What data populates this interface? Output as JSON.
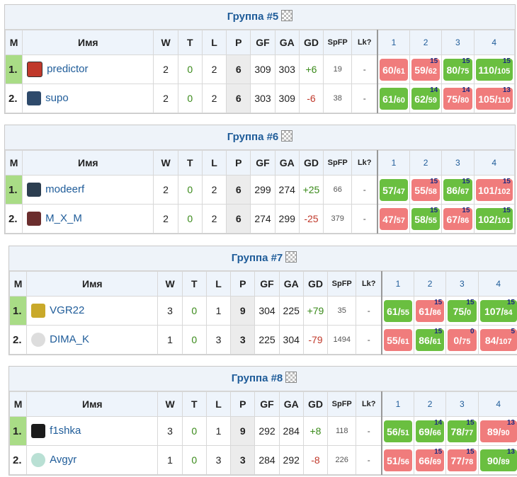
{
  "headers": {
    "m": "М",
    "name": "Имя",
    "w": "W",
    "t": "T",
    "l": "L",
    "p": "P",
    "gf": "GF",
    "ga": "GA",
    "gd": "GD",
    "spfp": "SpFP",
    "lk": "Lk?",
    "r1": "1",
    "r2": "2",
    "r3": "3",
    "r4": "4"
  },
  "groups": [
    {
      "title": "Группа #5",
      "rows": [
        {
          "m": "1.",
          "name": "predictor",
          "w": "2",
          "t": "0",
          "l": "2",
          "p": "6",
          "gf": "309",
          "ga": "303",
          "gd": "+6",
          "spfp": "19",
          "lk": "-",
          "res": [
            {
              "a": "60",
              "b": "61",
              "o": "",
              "win": false
            },
            {
              "a": "59",
              "b": "62",
              "o": "15",
              "win": false
            },
            {
              "a": "80",
              "b": "75",
              "o": "15",
              "win": true
            },
            {
              "a": "110",
              "b": "105",
              "o": "15",
              "win": true
            }
          ]
        },
        {
          "m": "2.",
          "name": "supo",
          "w": "2",
          "t": "0",
          "l": "2",
          "p": "6",
          "gf": "303",
          "ga": "309",
          "gd": "-6",
          "spfp": "38",
          "lk": "-",
          "res": [
            {
              "a": "61",
              "b": "60",
              "o": "",
              "win": true
            },
            {
              "a": "62",
              "b": "59",
              "o": "14",
              "win": true
            },
            {
              "a": "75",
              "b": "80",
              "o": "14",
              "win": false
            },
            {
              "a": "105",
              "b": "110",
              "o": "13",
              "win": false
            }
          ]
        }
      ]
    },
    {
      "title": "Группа #6",
      "rows": [
        {
          "m": "1.",
          "name": "modeerf",
          "w": "2",
          "t": "0",
          "l": "2",
          "p": "6",
          "gf": "299",
          "ga": "274",
          "gd": "+25",
          "spfp": "66",
          "lk": "-",
          "res": [
            {
              "a": "57",
              "b": "47",
              "o": "",
              "win": true
            },
            {
              "a": "55",
              "b": "58",
              "o": "15",
              "win": false
            },
            {
              "a": "86",
              "b": "67",
              "o": "15",
              "win": true
            },
            {
              "a": "101",
              "b": "102",
              "o": "15",
              "win": false
            }
          ]
        },
        {
          "m": "2.",
          "name": "M_X_M",
          "w": "2",
          "t": "0",
          "l": "2",
          "p": "6",
          "gf": "274",
          "ga": "299",
          "gd": "-25",
          "spfp": "379",
          "lk": "-",
          "res": [
            {
              "a": "47",
              "b": "57",
              "o": "",
              "win": false
            },
            {
              "a": "58",
              "b": "55",
              "o": "15",
              "win": true
            },
            {
              "a": "67",
              "b": "86",
              "o": "15",
              "win": false
            },
            {
              "a": "102",
              "b": "101",
              "o": "15",
              "win": true
            }
          ]
        }
      ]
    },
    {
      "title": "Группа #7",
      "rows": [
        {
          "m": "1.",
          "name": "VGR22",
          "w": "3",
          "t": "0",
          "l": "1",
          "p": "9",
          "gf": "304",
          "ga": "225",
          "gd": "+79",
          "spfp": "35",
          "lk": "-",
          "res": [
            {
              "a": "61",
              "b": "55",
              "o": "",
              "win": true
            },
            {
              "a": "61",
              "b": "86",
              "o": "15",
              "win": false
            },
            {
              "a": "75",
              "b": "0",
              "o": "15",
              "win": true
            },
            {
              "a": "107",
              "b": "84",
              "o": "15",
              "win": true
            }
          ]
        },
        {
          "m": "2.",
          "name": "DIMA_K",
          "w": "1",
          "t": "0",
          "l": "3",
          "p": "3",
          "gf": "225",
          "ga": "304",
          "gd": "-79",
          "spfp": "1494",
          "lk": "-",
          "res": [
            {
              "a": "55",
              "b": "61",
              "o": "",
              "win": false
            },
            {
              "a": "86",
              "b": "61",
              "o": "15",
              "win": true
            },
            {
              "a": "0",
              "b": "75",
              "o": "0",
              "win": false
            },
            {
              "a": "84",
              "b": "107",
              "o": "5",
              "win": false
            }
          ]
        }
      ]
    },
    {
      "title": "Группа #8",
      "rows": [
        {
          "m": "1.",
          "name": "f1shka",
          "w": "3",
          "t": "0",
          "l": "1",
          "p": "9",
          "gf": "292",
          "ga": "284",
          "gd": "+8",
          "spfp": "118",
          "lk": "-",
          "res": [
            {
              "a": "56",
              "b": "51",
              "o": "",
              "win": true
            },
            {
              "a": "69",
              "b": "66",
              "o": "14",
              "win": true
            },
            {
              "a": "78",
              "b": "77",
              "o": "15",
              "win": true
            },
            {
              "a": "89",
              "b": "90",
              "o": "13",
              "win": false
            }
          ]
        },
        {
          "m": "2.",
          "name": "Avgyr",
          "w": "1",
          "t": "0",
          "l": "3",
          "p": "3",
          "gf": "284",
          "ga": "292",
          "gd": "-8",
          "spfp": "226",
          "lk": "-",
          "res": [
            {
              "a": "51",
              "b": "56",
              "o": "",
              "win": false
            },
            {
              "a": "66",
              "b": "69",
              "o": "15",
              "win": false
            },
            {
              "a": "77",
              "b": "78",
              "o": "15",
              "win": false
            },
            {
              "a": "90",
              "b": "89",
              "o": "13",
              "win": true
            }
          ]
        }
      ]
    }
  ],
  "colors": {
    "win": "#6abf40",
    "loss": "#f07c7c",
    "leader": "#a9dc86",
    "title": "#1f5c99"
  },
  "icons": [
    "predictor-avatar-icon",
    "supo-avatar-icon",
    "modeerf-avatar-icon",
    "mxm-avatar-icon",
    "vgr22-avatar-icon",
    "dima-avatar-icon",
    "f1shka-avatar-icon",
    "avgyr-avatar-icon"
  ]
}
